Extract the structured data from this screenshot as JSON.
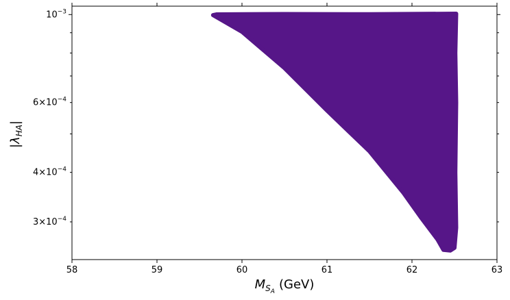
{
  "chart_data": {
    "type": "scatter",
    "title": "",
    "xlabel": {
      "symbol": "M",
      "subscript": "S",
      "sub_subscript": "A",
      "unit": "(GeV)"
    },
    "ylabel": {
      "symbol": "|λ",
      "subscript": "HA",
      "close": "|"
    },
    "x_scale": "linear",
    "y_scale": "log",
    "xlim": [
      58,
      63
    ],
    "ylim": [
      0.000241,
      0.00105
    ],
    "grid": false,
    "legend": "none",
    "x_ticks": [
      {
        "value": 58,
        "label": "58"
      },
      {
        "value": 59,
        "label": "59"
      },
      {
        "value": 60,
        "label": "60"
      },
      {
        "value": 61,
        "label": "61"
      },
      {
        "value": 62,
        "label": "62"
      },
      {
        "value": 63,
        "label": "63"
      }
    ],
    "y_ticks_major": [
      {
        "value": 0.001,
        "mantissa": "",
        "base": "10",
        "exponent": "−3"
      }
    ],
    "y_ticks_minor": [
      {
        "value": 0.0003,
        "mantissa": "3×",
        "base": "10",
        "exponent": "−4"
      },
      {
        "value": 0.0004,
        "mantissa": "4×",
        "base": "10",
        "exponent": "−4"
      },
      {
        "value": 0.0005,
        "mantissa": "",
        "base": "",
        "exponent": ""
      },
      {
        "value": 0.0006,
        "mantissa": "6×",
        "base": "10",
        "exponent": "−4"
      },
      {
        "value": 0.0007,
        "mantissa": "",
        "base": "",
        "exponent": ""
      },
      {
        "value": 0.0008,
        "mantissa": "",
        "base": "",
        "exponent": ""
      },
      {
        "value": 0.0009,
        "mantissa": "",
        "base": "",
        "exponent": ""
      }
    ],
    "series": [
      {
        "color": "#561688",
        "marker": "circle",
        "region_boundary": [
          {
            "x": 59.66,
            "y": 0.000997
          },
          {
            "x": 60.0,
            "y": 0.000905
          },
          {
            "x": 60.5,
            "y": 0.000733
          },
          {
            "x": 61.0,
            "y": 0.000573
          },
          {
            "x": 61.5,
            "y": 0.000452
          },
          {
            "x": 61.9,
            "y": 0.000355
          },
          {
            "x": 62.1,
            "y": 0.000309
          },
          {
            "x": 62.3,
            "y": 0.000271
          },
          {
            "x": 62.37,
            "y": 0.000255
          },
          {
            "x": 62.45,
            "y": 0.000254
          },
          {
            "x": 62.5,
            "y": 0.000258
          },
          {
            "x": 62.52,
            "y": 0.00029
          },
          {
            "x": 62.51,
            "y": 0.0004
          },
          {
            "x": 62.52,
            "y": 0.0006
          },
          {
            "x": 62.51,
            "y": 0.0008
          },
          {
            "x": 62.52,
            "y": 0.001005
          },
          {
            "x": 61.5,
            "y": 0.001002
          },
          {
            "x": 60.5,
            "y": 0.001003
          },
          {
            "x": 59.7,
            "y": 0.001001
          }
        ]
      }
    ]
  }
}
